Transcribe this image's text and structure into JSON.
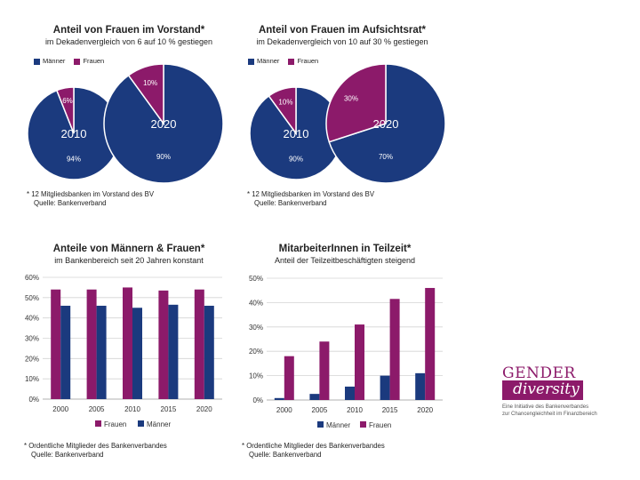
{
  "colors": {
    "maenner": "#1b3a7e",
    "frauen": "#8c1a6a",
    "grid": "#d4d4d4",
    "axis": "#999999"
  },
  "chart_data": [
    {
      "type": "pie",
      "title": "Anteil von Frauen im Vorstand*",
      "subtitle": "im Dekadenvergleich von 6 auf 10 % gestiegen",
      "legend": [
        "Männer",
        "Frauen"
      ],
      "pies": [
        {
          "label": "2010",
          "slices": [
            {
              "name": "Männer",
              "value": 94,
              "label": "94%"
            },
            {
              "name": "Frauen",
              "value": 6,
              "label": "6%"
            }
          ]
        },
        {
          "label": "2020",
          "slices": [
            {
              "name": "Männer",
              "value": 90,
              "label": "90%"
            },
            {
              "name": "Frauen",
              "value": 10,
              "label": "10%"
            }
          ]
        }
      ],
      "notes": [
        "* 12 Mitgliedsbanken im Vorstand des BV",
        "Quelle: Bankenverband"
      ]
    },
    {
      "type": "pie",
      "title": "Anteil von Frauen im Aufsichtsrat*",
      "subtitle": "im Dekadenvergleich von 10 auf 30 % gestiegen",
      "legend": [
        "Männer",
        "Frauen"
      ],
      "pies": [
        {
          "label": "2010",
          "slices": [
            {
              "name": "Männer",
              "value": 90,
              "label": "90%"
            },
            {
              "name": "Frauen",
              "value": 10,
              "label": "10%"
            }
          ]
        },
        {
          "label": "2020",
          "slices": [
            {
              "name": "Männer",
              "value": 70,
              "label": "70%"
            },
            {
              "name": "Frauen",
              "value": 30,
              "label": "30%"
            }
          ]
        }
      ],
      "notes": [
        "* 12 Mitgliedsbanken im Vorstand des BV",
        "Quelle: Bankenverband"
      ]
    },
    {
      "type": "bar",
      "title": "Anteile von Männern & Frauen*",
      "subtitle": "im Bankenbereich seit 20 Jahren konstant",
      "categories": [
        "2000",
        "2005",
        "2010",
        "2015",
        "2020"
      ],
      "series": [
        {
          "name": "Frauen",
          "values": [
            54,
            54,
            55,
            53.5,
            54
          ]
        },
        {
          "name": "Männer",
          "values": [
            46,
            46,
            45,
            46.5,
            46
          ]
        }
      ],
      "ylim": [
        0,
        60
      ],
      "yticks": [
        "0%",
        "10%",
        "20%",
        "30%",
        "40%",
        "50%",
        "60%"
      ],
      "legend": [
        "Frauen",
        "Männer"
      ],
      "notes": [
        "* Ordentliche Mitglieder des Bankenverbandes",
        "Quelle: Bankenverband"
      ]
    },
    {
      "type": "bar",
      "title": "MitarbeiterInnen in Teilzeit*",
      "subtitle": "Anteil der Teilzeitbeschäftigten steigend",
      "categories": [
        "2000",
        "2005",
        "2010",
        "2015",
        "2020"
      ],
      "series": [
        {
          "name": "Männer",
          "values": [
            0.8,
            2.5,
            5.5,
            10,
            11
          ]
        },
        {
          "name": "Frauen",
          "values": [
            18,
            24,
            31,
            41.5,
            46
          ]
        }
      ],
      "ylim": [
        0,
        50
      ],
      "yticks": [
        "0%",
        "10%",
        "20%",
        "30%",
        "40%",
        "50%"
      ],
      "legend": [
        "Männer",
        "Frauen"
      ],
      "notes": [
        "* Ordentliche Mitglieder des Bankenverbandes",
        "Quelle: Bankenverband"
      ]
    }
  ],
  "logo": {
    "gender": "GENDER",
    "diversity": "diversity",
    "tagline_1": "Eine Initiative des Bankenverbandes",
    "tagline_2": "zur Chancengleichheit im Finanzbereich"
  }
}
